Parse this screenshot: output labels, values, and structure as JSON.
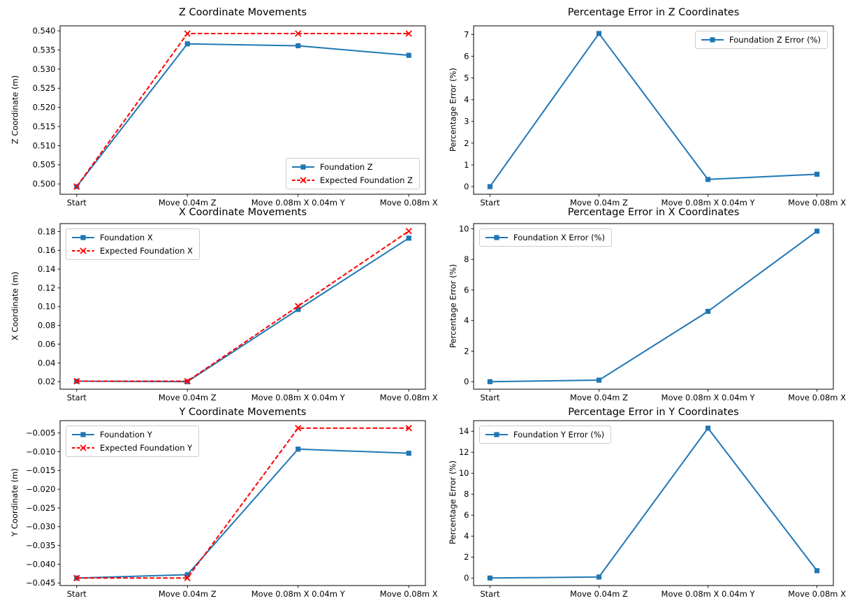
{
  "figure": {
    "background": "#ffffff",
    "axis_color": "#000000"
  },
  "palette": {
    "blue": "#1f77b4",
    "red": "#ff0000",
    "legend_border": "#cccccc"
  },
  "chart_data": [
    {
      "type": "line",
      "title": "Z Coordinate Movements",
      "xlabel": "",
      "ylabel": "Z Coordinate (m)",
      "categories": [
        "Start",
        "Move 0.04m Z",
        "Move 0.08m X 0.04m Y",
        "Move 0.08m X"
      ],
      "series": [
        {
          "name": "Foundation Z",
          "color": "#1f77b4",
          "line": "solid",
          "marker": "square",
          "values": [
            0.4993,
            0.5366,
            0.5361,
            0.5336
          ]
        },
        {
          "name": "Expected Foundation Z",
          "color": "#ff0000",
          "line": "dashed",
          "marker": "x",
          "values": [
            0.4993,
            0.5393,
            0.5393,
            0.5393
          ]
        }
      ],
      "ylim": [
        0.4973,
        0.5413
      ],
      "yticks": [
        0.5,
        0.505,
        0.51,
        0.515,
        0.52,
        0.525,
        0.53,
        0.535,
        0.54
      ],
      "ytick_labels": [
        "0.500",
        "0.505",
        "0.510",
        "0.515",
        "0.520",
        "0.525",
        "0.530",
        "0.535",
        "0.540"
      ],
      "legend": "lower right",
      "grid": false
    },
    {
      "type": "line",
      "title": "Percentage Error in Z Coordinates",
      "xlabel": "",
      "ylabel": "Percentage Error (%)",
      "categories": [
        "Start",
        "Move 0.04m Z",
        "Move 0.08m X 0.04m Y",
        "Move 0.08m X"
      ],
      "series": [
        {
          "name": "Foundation Z Error (%)",
          "color": "#1f77b4",
          "line": "solid",
          "marker": "square",
          "values": [
            0.0,
            7.05,
            0.33,
            0.57
          ]
        }
      ],
      "ylim": [
        -0.3525,
        7.4025
      ],
      "yticks": [
        0,
        1,
        2,
        3,
        4,
        5,
        6,
        7
      ],
      "ytick_labels": [
        "0",
        "1",
        "2",
        "3",
        "4",
        "5",
        "6",
        "7"
      ],
      "legend": "upper right",
      "grid": false
    },
    {
      "type": "line",
      "title": "X Coordinate Movements",
      "xlabel": "",
      "ylabel": "X Coordinate (m)",
      "categories": [
        "Start",
        "Move 0.04m Z",
        "Move 0.08m X 0.04m Y",
        "Move 0.08m X"
      ],
      "series": [
        {
          "name": "Foundation X",
          "color": "#1f77b4",
          "line": "solid",
          "marker": "square",
          "values": [
            0.0205,
            0.02,
            0.097,
            0.173
          ]
        },
        {
          "name": "Expected Foundation X",
          "color": "#ff0000",
          "line": "dashed",
          "marker": "x",
          "values": [
            0.0205,
            0.0205,
            0.1005,
            0.1805
          ]
        }
      ],
      "ylim": [
        0.01197,
        0.18853
      ],
      "yticks": [
        0.02,
        0.04,
        0.06,
        0.08,
        0.1,
        0.12,
        0.14,
        0.16,
        0.18
      ],
      "ytick_labels": [
        "0.02",
        "0.04",
        "0.06",
        "0.08",
        "0.10",
        "0.12",
        "0.14",
        "0.16",
        "0.18"
      ],
      "legend": "upper left",
      "grid": false
    },
    {
      "type": "line",
      "title": "Percentage Error in X Coordinates",
      "xlabel": "",
      "ylabel": "Percentage Error (%)",
      "categories": [
        "Start",
        "Move 0.04m Z",
        "Move 0.08m X 0.04m Y",
        "Move 0.08m X"
      ],
      "series": [
        {
          "name": "Foundation X Error (%)",
          "color": "#1f77b4",
          "line": "solid",
          "marker": "square",
          "values": [
            0.0,
            0.1,
            4.6,
            9.85
          ]
        }
      ],
      "ylim": [
        -0.4925,
        10.3425
      ],
      "yticks": [
        0,
        2,
        4,
        6,
        8,
        10
      ],
      "ytick_labels": [
        "0",
        "2",
        "4",
        "6",
        "8",
        "10"
      ],
      "legend": "upper left",
      "grid": false
    },
    {
      "type": "line",
      "title": "Y Coordinate Movements",
      "xlabel": "",
      "ylabel": "Y Coordinate (m)",
      "categories": [
        "Start",
        "Move 0.04m Z",
        "Move 0.08m X 0.04m Y",
        "Move 0.08m X"
      ],
      "series": [
        {
          "name": "Foundation Y",
          "color": "#1f77b4",
          "line": "solid",
          "marker": "square",
          "values": [
            -0.0437,
            -0.0428,
            -0.0093,
            -0.0104
          ]
        },
        {
          "name": "Expected Foundation Y",
          "color": "#ff0000",
          "line": "dashed",
          "marker": "x",
          "values": [
            -0.0437,
            -0.0437,
            -0.0037,
            -0.0037
          ]
        }
      ],
      "ylim": [
        -0.0457,
        -0.0017
      ],
      "yticks": [
        -0.045,
        -0.04,
        -0.035,
        -0.03,
        -0.025,
        -0.02,
        -0.015,
        -0.01,
        -0.005
      ],
      "ytick_labels": [
        "−0.045",
        "−0.040",
        "−0.035",
        "−0.030",
        "−0.025",
        "−0.020",
        "−0.015",
        "−0.010",
        "−0.005"
      ],
      "legend": "upper left",
      "grid": false
    },
    {
      "type": "line",
      "title": "Percentage Error in Y Coordinates",
      "xlabel": "",
      "ylabel": "Percentage Error (%)",
      "categories": [
        "Start",
        "Move 0.04m Z",
        "Move 0.08m X 0.04m Y",
        "Move 0.08m X"
      ],
      "series": [
        {
          "name": "Foundation Y Error (%)",
          "color": "#1f77b4",
          "line": "solid",
          "marker": "square",
          "values": [
            0.0,
            0.1,
            14.3,
            0.7
          ]
        }
      ],
      "ylim": [
        -0.715,
        15.015
      ],
      "yticks": [
        0,
        2,
        4,
        6,
        8,
        10,
        12,
        14
      ],
      "ytick_labels": [
        "0",
        "2",
        "4",
        "6",
        "8",
        "10",
        "12",
        "14"
      ],
      "legend": "upper left",
      "grid": false
    }
  ]
}
